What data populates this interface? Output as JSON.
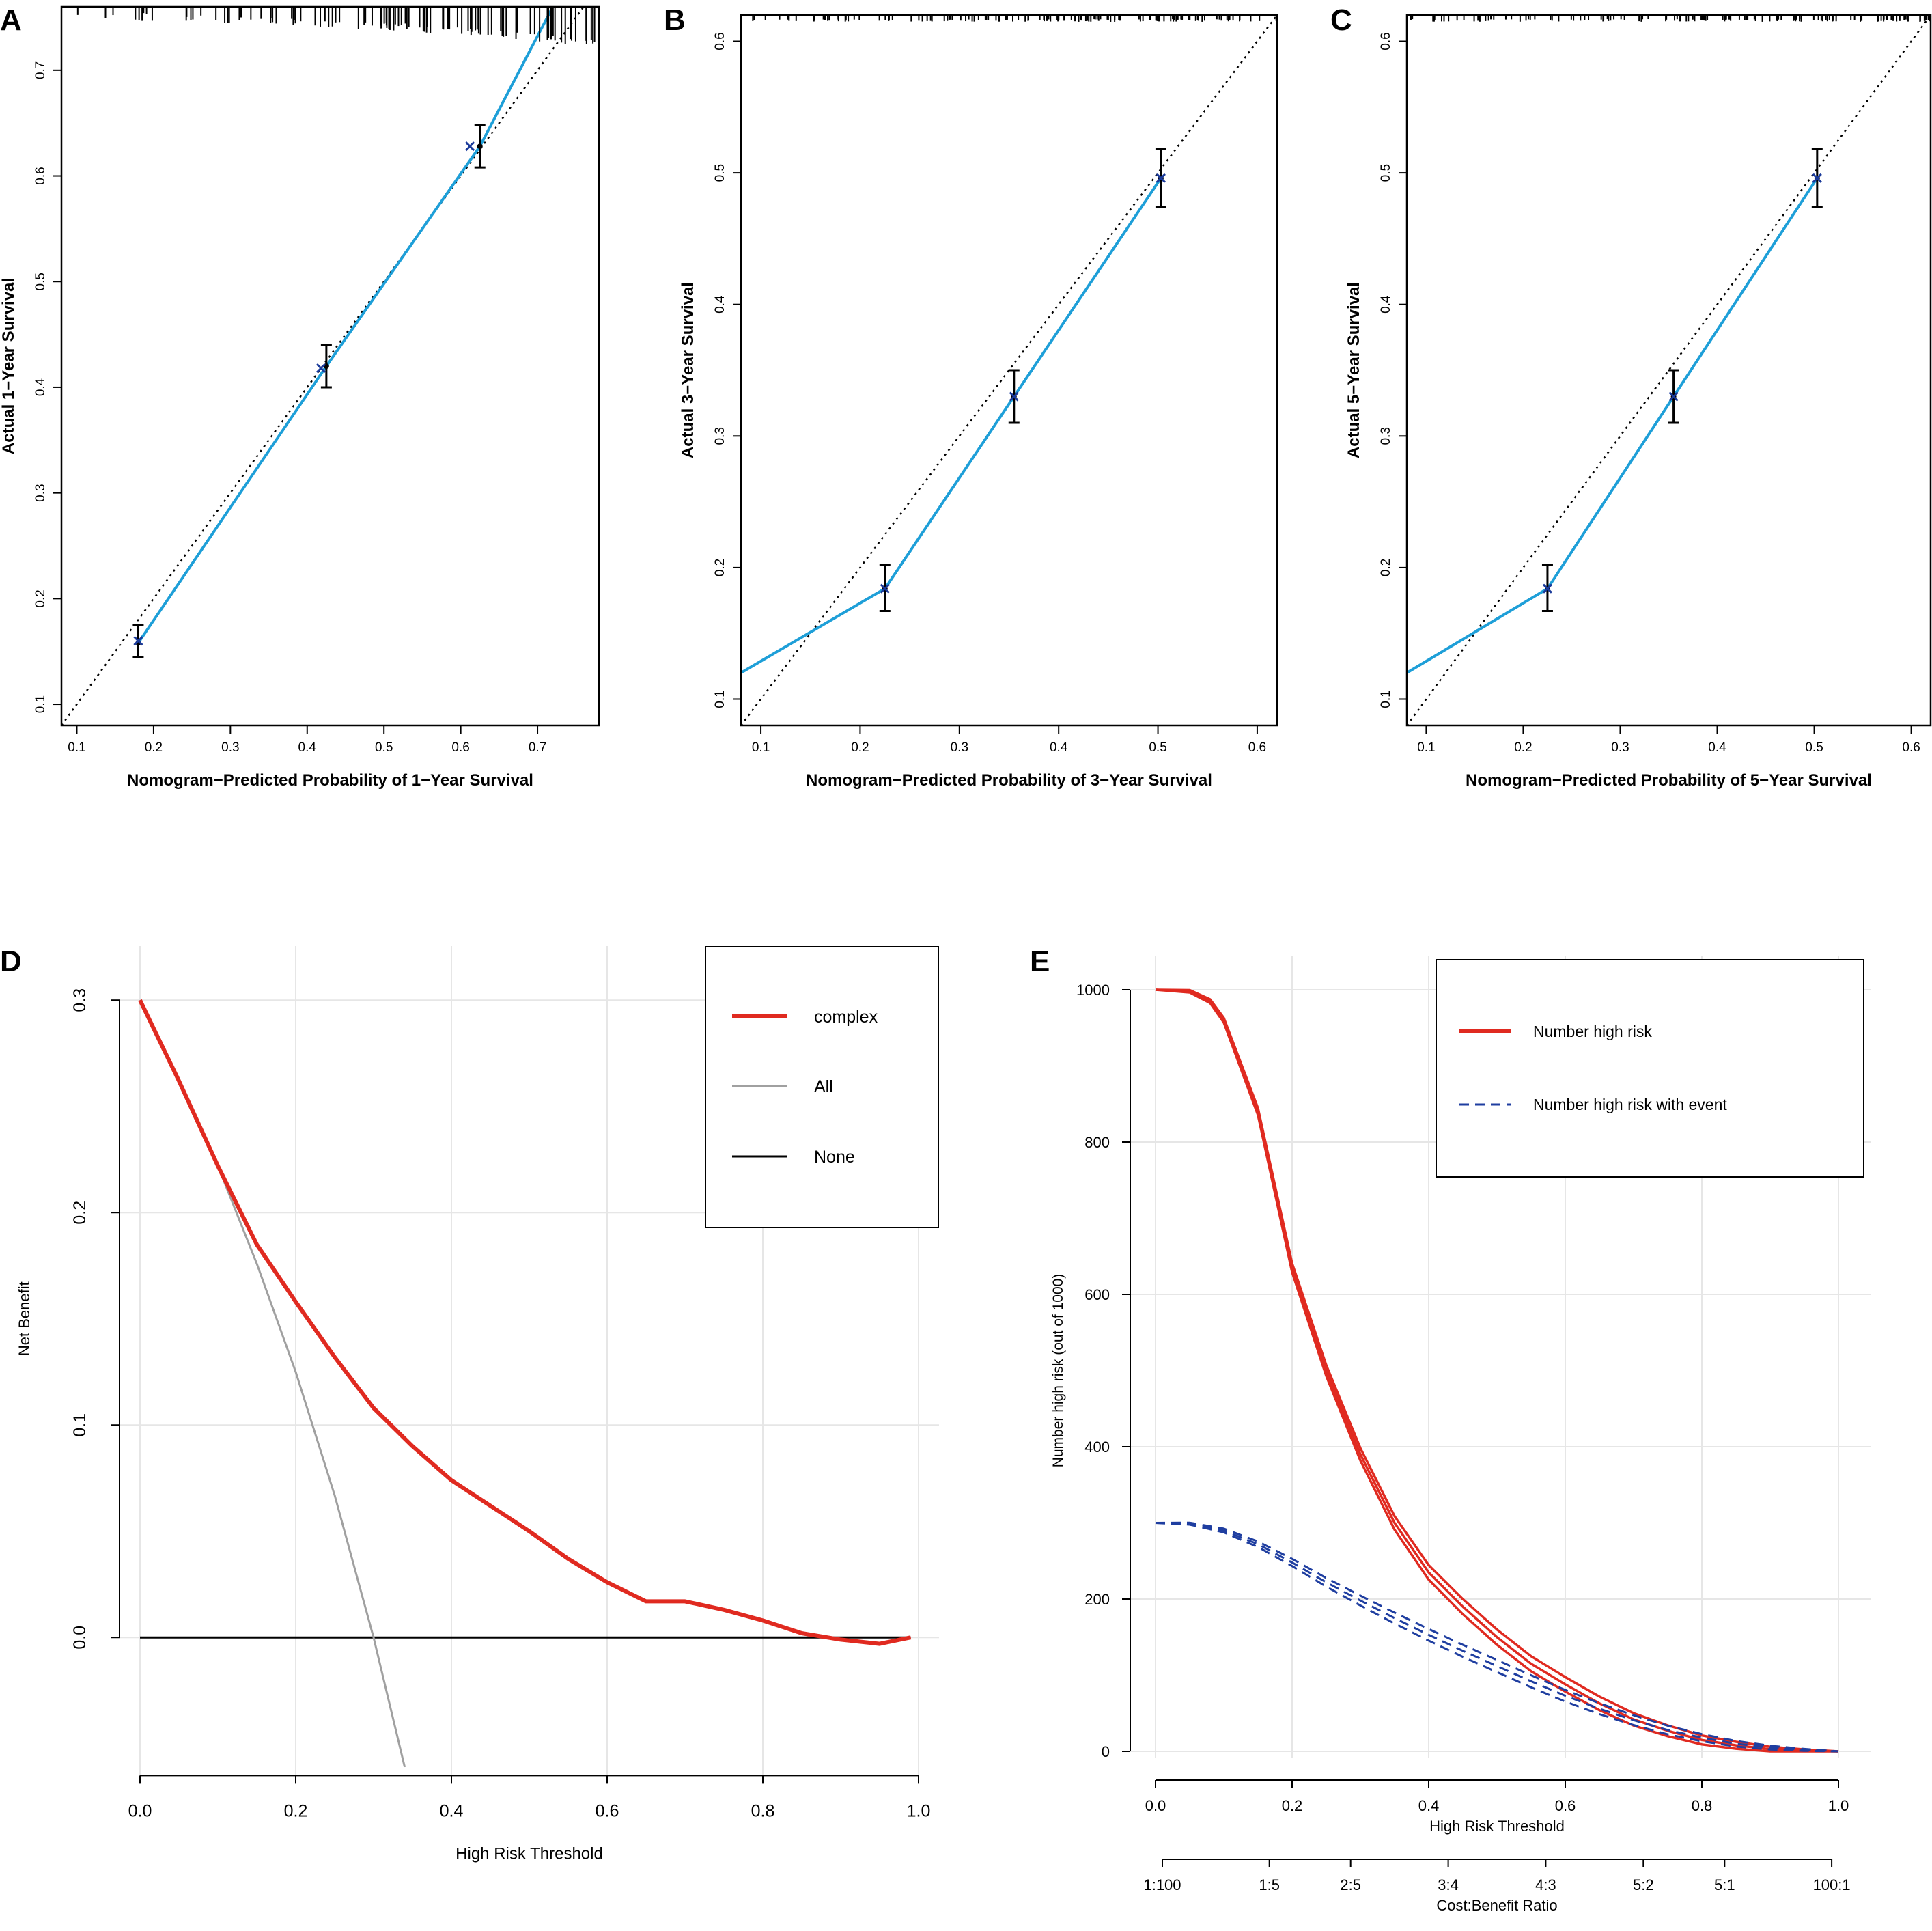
{
  "chart_data": [
    {
      "panel": "A",
      "type": "line",
      "xlabel": "Nomogram−Predicted Probability of 1−Year Survival",
      "ylabel": "Actual 1−Year Survival",
      "xlim": [
        0.08,
        0.78
      ],
      "ylim": [
        0.08,
        0.76
      ],
      "xticks": [
        0.1,
        0.2,
        0.3,
        0.4,
        0.5,
        0.6,
        0.7
      ],
      "yticks": [
        0.1,
        0.2,
        0.3,
        0.4,
        0.5,
        0.6,
        0.7
      ],
      "x": [
        0.18,
        0.425,
        0.625,
        0.72
      ],
      "y": [
        0.158,
        0.42,
        0.628,
        0.76
      ],
      "err_low": [
        0.145,
        0.4,
        0.608
      ],
      "err_high": [
        0.175,
        0.44,
        0.648
      ],
      "raw_points": [
        [
          0.18,
          0.16
        ],
        [
          0.418,
          0.418
        ],
        [
          0.612,
          0.628
        ]
      ],
      "rug": "top",
      "reference_line": "y = x (dotted)",
      "colors": {
        "line": "#1e9fd8",
        "points": "#1a3a9a",
        "ref": "#000000"
      }
    },
    {
      "panel": "B",
      "type": "line",
      "xlabel": "Nomogram−Predicted Probability of 3−Year Survival",
      "ylabel": "Actual 3−Year Survival",
      "xlim": [
        0.08,
        0.62
      ],
      "ylim": [
        0.08,
        0.62
      ],
      "xticks": [
        0.1,
        0.2,
        0.3,
        0.4,
        0.5,
        0.6
      ],
      "yticks": [
        0.1,
        0.2,
        0.3,
        0.4,
        0.5,
        0.6
      ],
      "x": [
        0.08,
        0.225,
        0.355,
        0.503
      ],
      "y": [
        0.12,
        0.184,
        0.33,
        0.496
      ],
      "err_low": [
        0.167,
        0.31,
        0.474
      ],
      "err_high": [
        0.202,
        0.35,
        0.518
      ],
      "raw_points": [
        [
          0.225,
          0.184
        ],
        [
          0.355,
          0.33
        ],
        [
          0.503,
          0.496
        ]
      ],
      "rug": "top",
      "reference_line": "y = x (dotted)",
      "colors": {
        "line": "#1e9fd8",
        "points": "#1a3a9a",
        "ref": "#000000"
      }
    },
    {
      "panel": "C",
      "type": "line",
      "xlabel": "Nomogram−Predicted Probability of 5−Year Survival",
      "ylabel": "Actual 5−Year Survival",
      "xlim": [
        0.08,
        0.62
      ],
      "ylim": [
        0.08,
        0.62
      ],
      "xticks": [
        0.1,
        0.2,
        0.3,
        0.4,
        0.5,
        0.6
      ],
      "yticks": [
        0.1,
        0.2,
        0.3,
        0.4,
        0.5,
        0.6
      ],
      "x": [
        0.08,
        0.225,
        0.355,
        0.503
      ],
      "y": [
        0.12,
        0.184,
        0.33,
        0.496
      ],
      "err_low": [
        0.167,
        0.31,
        0.474
      ],
      "err_high": [
        0.202,
        0.35,
        0.518
      ],
      "raw_points": [
        [
          0.225,
          0.184
        ],
        [
          0.355,
          0.33
        ],
        [
          0.503,
          0.496
        ]
      ],
      "rug": "top",
      "reference_line": "y = x (dotted)",
      "colors": {
        "line": "#1e9fd8",
        "points": "#1a3a9a",
        "ref": "#000000"
      }
    },
    {
      "panel": "D",
      "type": "line",
      "title": "",
      "xlabel": "High Risk Threshold",
      "ylabel": "Net Benefit",
      "xlim": [
        0.0,
        1.0
      ],
      "ylim": [
        -0.065,
        0.3
      ],
      "xticks": [
        0.0,
        0.2,
        0.4,
        0.6,
        0.8,
        1.0
      ],
      "xtick_labels": [
        "0.0",
        "0.2",
        "0.4",
        "0.6",
        "0.8",
        "1.0"
      ],
      "yticks": [
        0.0,
        0.1,
        0.2,
        0.3
      ],
      "ytick_labels": [
        "0.0",
        "0.1",
        "0.2",
        "0.3"
      ],
      "grid": true,
      "legend": {
        "position": "top-right",
        "entries": [
          "complex",
          "All",
          "None"
        ]
      },
      "series": [
        {
          "name": "complex",
          "color": "#e02a20",
          "x": [
            0.0,
            0.05,
            0.1,
            0.15,
            0.2,
            0.25,
            0.3,
            0.35,
            0.4,
            0.45,
            0.5,
            0.55,
            0.6,
            0.65,
            0.7,
            0.75,
            0.8,
            0.85,
            0.9,
            0.95,
            0.99
          ],
          "y": [
            0.3,
            0.262,
            0.222,
            0.185,
            0.158,
            0.132,
            0.108,
            0.09,
            0.074,
            0.062,
            0.05,
            0.037,
            0.026,
            0.017,
            0.017,
            0.013,
            0.008,
            0.002,
            -0.001,
            -0.003,
            0.0
          ]
        },
        {
          "name": "All",
          "color": "#a0a0a0",
          "x": [
            0.0,
            0.05,
            0.1,
            0.15,
            0.2,
            0.25,
            0.3,
            0.34
          ],
          "y": [
            0.3,
            0.263,
            0.222,
            0.176,
            0.125,
            0.067,
            0.0,
            -0.061
          ]
        },
        {
          "name": "None",
          "color": "#000000",
          "x": [
            0.0,
            0.99
          ],
          "y": [
            0.0,
            0.0
          ]
        }
      ]
    },
    {
      "panel": "E",
      "type": "line",
      "xlabel": "High Risk Threshold",
      "ylabel": "Number high risk (out of 1000)",
      "xlim": [
        0.0,
        1.0
      ],
      "ylim": [
        0,
        1000
      ],
      "xticks": [
        0.0,
        0.2,
        0.4,
        0.6,
        0.8,
        1.0
      ],
      "xtick_labels": [
        "0.0",
        "0.2",
        "0.4",
        "0.6",
        "0.8",
        "1.0"
      ],
      "yticks": [
        0,
        200,
        400,
        600,
        800,
        1000
      ],
      "ytick_labels": [
        "0",
        "200",
        "400",
        "600",
        "800",
        "1000"
      ],
      "secondary_axis": {
        "label": "Cost:Benefit Ratio",
        "ticks": [
          0.01,
          0.1667,
          0.2857,
          0.4286,
          0.5714,
          0.7143,
          0.8333,
          0.9901
        ],
        "tick_labels": [
          "1:100",
          "1:5",
          "2:5",
          "3:4",
          "4:3",
          "5:2",
          "5:1",
          "100:1"
        ]
      },
      "grid": true,
      "legend": {
        "position": "top-right",
        "entries": [
          "Number high risk",
          "Number high risk with event"
        ]
      },
      "series": [
        {
          "name": "Number high risk",
          "color": "#e02a20",
          "style": "solid",
          "x": [
            0.0,
            0.05,
            0.08,
            0.1,
            0.15,
            0.2,
            0.25,
            0.3,
            0.35,
            0.4,
            0.45,
            0.5,
            0.55,
            0.6,
            0.65,
            0.7,
            0.75,
            0.8,
            0.85,
            0.9,
            0.95,
            1.0
          ],
          "y": [
            1000,
            998,
            985,
            960,
            840,
            635,
            500,
            390,
            300,
            235,
            190,
            150,
            115,
            88,
            63,
            42,
            27,
            15,
            8,
            3,
            1,
            0
          ],
          "band": 10
        },
        {
          "name": "Number high risk with event",
          "color": "#1f3ea0",
          "style": "dashed",
          "x": [
            0.0,
            0.05,
            0.1,
            0.15,
            0.2,
            0.25,
            0.3,
            0.35,
            0.4,
            0.45,
            0.5,
            0.55,
            0.6,
            0.65,
            0.7,
            0.75,
            0.8,
            0.85,
            0.9,
            0.95,
            1.0
          ],
          "y": [
            300,
            299,
            290,
            272,
            248,
            222,
            198,
            175,
            153,
            132,
            112,
            92,
            73,
            56,
            41,
            28,
            18,
            10,
            5,
            2,
            0
          ],
          "band": 8
        }
      ]
    }
  ],
  "panel_labels": {
    "a": "A",
    "b": "B",
    "c": "C",
    "d": "D",
    "e": "E"
  },
  "legend_d": {
    "complex": "complex",
    "all": "All",
    "none": "None"
  },
  "legend_e": {
    "risk": "Number high risk",
    "event": "Number high risk with event"
  }
}
